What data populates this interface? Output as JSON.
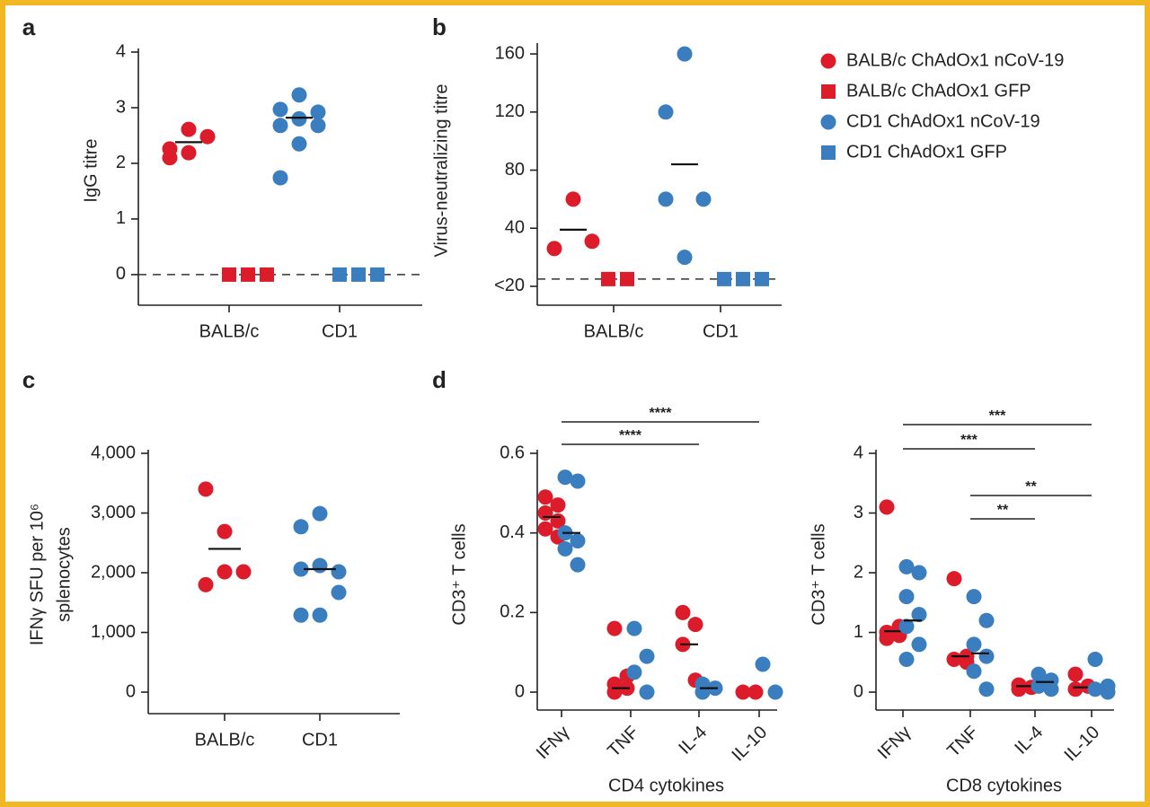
{
  "legend": [
    {
      "name": "BALB/c ChAdOx1 nCoV-19",
      "color": "#dc1c2b",
      "marker": "circle"
    },
    {
      "name": "BALB/c ChAdOx1 GFP",
      "color": "#dc1c2b",
      "marker": "square"
    },
    {
      "name": "CD1 ChAdOx1 nCoV-19",
      "color": "#3a7ec0",
      "marker": "circle"
    },
    {
      "name": "CD1 ChAdOx1 GFP",
      "color": "#3a7ec0",
      "marker": "square"
    }
  ],
  "chart_data": [
    {
      "type": "dot",
      "panel": "a",
      "ylabel": [
        "IgG titre"
      ],
      "categories": [
        "BALB/c",
        "CD1"
      ],
      "ylim": [
        -0.55,
        4
      ],
      "yticks": [
        0,
        1,
        2,
        3,
        4
      ],
      "reference_line": 0,
      "series": [
        {
          "legend": 0,
          "values": [
            [
              2.26,
              2.61,
              2.48,
              2.1,
              2.19
            ],
            null
          ],
          "medians": [
            2.38,
            null
          ]
        },
        {
          "legend": 1,
          "values": [
            [
              0,
              0,
              0
            ],
            null
          ],
          "medians": [
            null,
            null
          ]
        },
        {
          "legend": 2,
          "values": [
            null,
            [
              2.97,
              3.23,
              2.92,
              2.68,
              2.35,
              2.68,
              1.74,
              2.8
            ]
          ],
          "medians": [
            null,
            2.82
          ]
        },
        {
          "legend": 3,
          "values": [
            null,
            [
              0,
              0,
              0
            ]
          ],
          "medians": [
            null,
            null
          ]
        }
      ]
    },
    {
      "type": "dot",
      "panel": "b",
      "ylabel": [
        "Virus-neutralizing titre"
      ],
      "categories": [
        "BALB/c",
        "CD1"
      ],
      "ylim": [
        -13,
        165
      ],
      "yticks": [
        {
          "value": 0,
          "label": "<20"
        },
        40,
        80,
        120,
        160
      ],
      "reference_line": 5,
      "series": [
        {
          "legend": 0,
          "values": [
            [
              26,
              60,
              31
            ],
            null
          ],
          "medians": [
            39,
            null
          ]
        },
        {
          "legend": 1,
          "values": [
            [
              5,
              5
            ],
            null
          ],
          "medians": [
            null,
            null
          ]
        },
        {
          "legend": 2,
          "values": [
            null,
            [
              60,
              160,
              60,
              120,
              20
            ]
          ],
          "medians": [
            null,
            84
          ]
        },
        {
          "legend": 3,
          "values": [
            null,
            [
              5,
              5,
              5
            ]
          ],
          "medians": [
            null,
            null
          ]
        }
      ]
    },
    {
      "type": "dot",
      "panel": "c",
      "ylabel": [
        "IFNγ SFU per 10⁶",
        "splenocytes"
      ],
      "categories": [
        "BALB/c",
        "CD1"
      ],
      "ylim": [
        -360,
        4000
      ],
      "yticks": [
        0,
        {
          "value": 1000,
          "label": "1,000"
        },
        {
          "value": 2000,
          "label": "2,000"
        },
        {
          "value": 3000,
          "label": "3,000"
        },
        {
          "value": 4000,
          "label": "4,000"
        }
      ],
      "series": [
        {
          "legend": 0,
          "values": [
            [
              3400,
              2690,
              2015,
              1800,
              2015
            ],
            null
          ],
          "medians": [
            2400,
            null
          ]
        },
        {
          "legend": 2,
          "values": [
            null,
            [
              2770,
              2990,
              2015,
              2060,
              2120,
              1670,
              1290,
              1290
            ]
          ],
          "medians": [
            null,
            2060
          ]
        }
      ]
    },
    {
      "type": "dot",
      "panel": "d",
      "ylabel": [
        "CD3⁺ T cells"
      ],
      "xlabel": "CD4 cytokines",
      "categories": [
        "IFNγ",
        "TNF",
        "IL-4",
        "IL-10"
      ],
      "ylim": [
        -0.045,
        0.6
      ],
      "yticks": [
        0,
        0.2,
        0.4,
        0.6
      ],
      "brackets": [
        {
          "from": 0,
          "to": 3,
          "label": "****"
        },
        {
          "from": 0,
          "to": 2,
          "label": "****"
        }
      ],
      "series": [
        {
          "legend": 0,
          "values": [
            [
              0.49,
              0.47,
              0.45,
              0.43,
              0.41,
              0.39
            ],
            [
              0.16,
              0.04,
              0.02,
              0.01,
              0.0
            ],
            [
              0.2,
              0.17,
              0.12,
              0.03
            ],
            [
              0.0,
              0.0
            ]
          ],
          "medians": [
            0.44,
            0.01,
            0.12,
            null
          ]
        },
        {
          "legend": 2,
          "values": [
            [
              0.54,
              0.53,
              0.4,
              0.38,
              0.36,
              0.32
            ],
            [
              0.16,
              0.09,
              0.05,
              0.0
            ],
            [
              0.02,
              0.01,
              0.0
            ],
            [
              0.07,
              0.0
            ]
          ],
          "medians": [
            0.4,
            null,
            0.01,
            null
          ]
        }
      ]
    },
    {
      "type": "dot",
      "ylabel": [
        "CD3⁺ T cells"
      ],
      "xlabel": "CD8 cytokines",
      "categories": [
        "IFNγ",
        "TNF",
        "IL-4",
        "IL-10"
      ],
      "ylim": [
        -0.3,
        4
      ],
      "yticks": [
        0,
        1,
        2,
        3,
        4
      ],
      "brackets": [
        {
          "from": 0,
          "to": 3,
          "label": "***"
        },
        {
          "from": 0,
          "to": 2,
          "label": "***"
        },
        {
          "from": 1,
          "to": 3,
          "label": "**"
        },
        {
          "from": 1,
          "to": 2,
          "label": "**"
        }
      ],
      "series": [
        {
          "legend": 0,
          "values": [
            [
              3.1,
              1.1,
              1.0,
              0.95,
              0.9
            ],
            [
              1.9,
              0.6,
              0.55,
              0.5
            ],
            [
              0.12,
              0.08,
              0.05
            ],
            [
              0.3,
              0.1,
              0.05
            ]
          ],
          "medians": [
            1.02,
            0.6,
            0.1,
            0.08
          ]
        },
        {
          "legend": 2,
          "values": [
            [
              2.1,
              2.0,
              1.6,
              1.3,
              1.1,
              0.8,
              0.55
            ],
            [
              1.6,
              1.2,
              0.8,
              0.6,
              0.35,
              0.05
            ],
            [
              0.3,
              0.2,
              0.1,
              0.05
            ],
            [
              0.55,
              0.1,
              0.05,
              0.0
            ]
          ],
          "medians": [
            1.2,
            0.65,
            0.17,
            null
          ]
        }
      ]
    }
  ]
}
